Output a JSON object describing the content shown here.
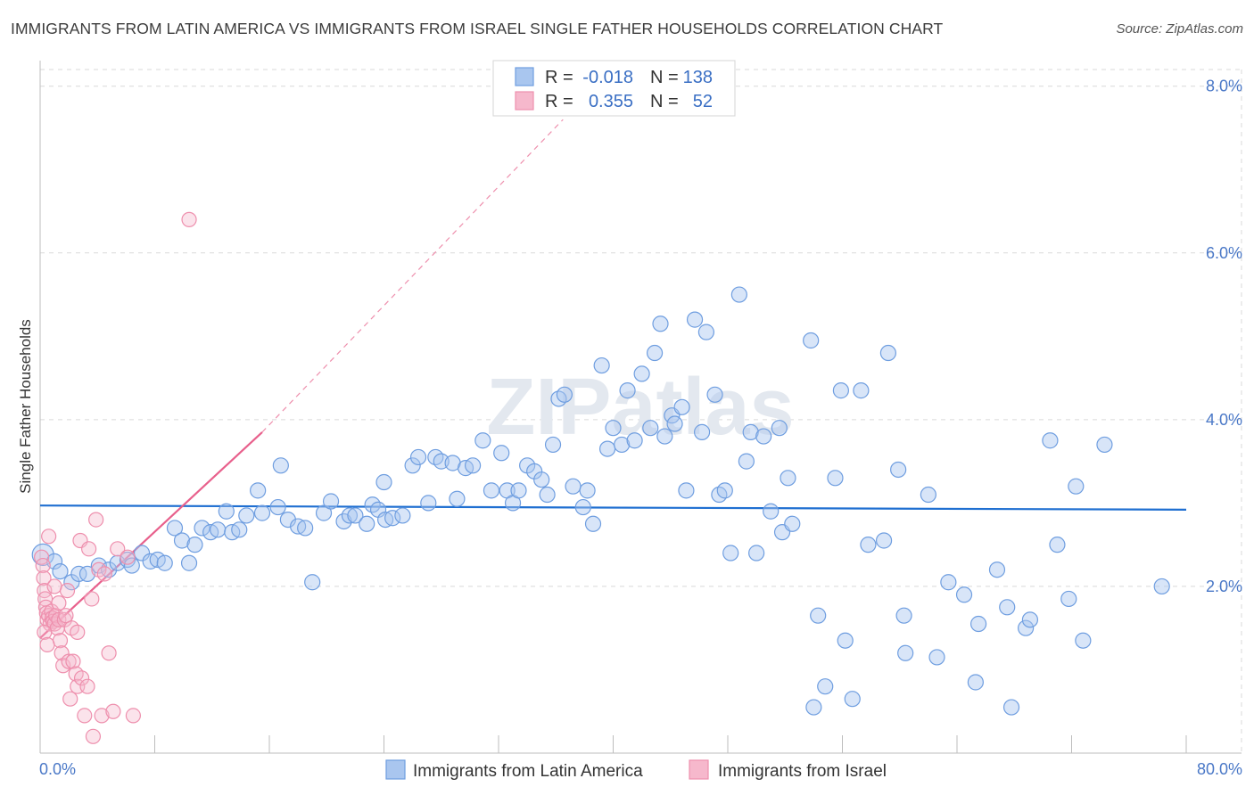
{
  "title": "IMMIGRANTS FROM LATIN AMERICA VS IMMIGRANTS FROM ISRAEL SINGLE FATHER HOUSEHOLDS CORRELATION CHART",
  "source": "Source: ZipAtlas.com",
  "watermark": "ZIPatlas",
  "colors": {
    "blue_fill": "#a9c6ef",
    "blue_stroke": "#6f9ee0",
    "blue_line": "#1f6fd1",
    "pink_fill": "#f6b8cc",
    "pink_stroke": "#ee8fad",
    "pink_line": "#e8608c",
    "grid": "#d9d9d9",
    "tick_label": "#4a78c7"
  },
  "legend": {
    "rows": [
      {
        "r_label": "R =",
        "r_value": "-0.018",
        "n_label": "N =",
        "n_value": "138",
        "color": "#a9c6ef"
      },
      {
        "r_label": "R =",
        "r_value": "0.355",
        "n_label": "N =",
        "n_value": "52",
        "color": "#f6b8cc"
      }
    ]
  },
  "chart_data": {
    "type": "scatter",
    "title": "IMMIGRANTS FROM LATIN AMERICA VS IMMIGRANTS FROM ISRAEL SINGLE FATHER HOUSEHOLDS CORRELATION CHART",
    "xlabel": "",
    "ylabel": "Single Father Households",
    "xlim": [
      0,
      80
    ],
    "ylim": [
      0,
      8.2
    ],
    "x_tick_labels": [
      "0.0%",
      "80.0%"
    ],
    "y_tick_labels": [
      "2.0%",
      "4.0%",
      "6.0%",
      "8.0%"
    ],
    "y_ticks": [
      2,
      4,
      6,
      8
    ],
    "grid": true,
    "legend_position": "top-center",
    "series": [
      {
        "name": "Immigrants from Latin America",
        "color": "#a9c6ef",
        "trend": {
          "x": [
            0,
            80
          ],
          "y": [
            2.97,
            2.92
          ]
        },
        "points": [
          [
            0.2,
            2.38
          ],
          [
            1.0,
            2.3
          ],
          [
            1.4,
            2.18
          ],
          [
            2.2,
            2.05
          ],
          [
            2.7,
            2.15
          ],
          [
            3.3,
            2.15
          ],
          [
            4.1,
            2.25
          ],
          [
            4.8,
            2.2
          ],
          [
            5.4,
            2.28
          ],
          [
            6.1,
            2.32
          ],
          [
            6.4,
            2.25
          ],
          [
            7.1,
            2.4
          ],
          [
            7.7,
            2.3
          ],
          [
            8.2,
            2.32
          ],
          [
            8.7,
            2.28
          ],
          [
            9.4,
            2.7
          ],
          [
            9.9,
            2.55
          ],
          [
            10.4,
            2.28
          ],
          [
            10.8,
            2.5
          ],
          [
            11.3,
            2.7
          ],
          [
            11.9,
            2.65
          ],
          [
            12.4,
            2.68
          ],
          [
            13.0,
            2.9
          ],
          [
            13.4,
            2.65
          ],
          [
            13.9,
            2.68
          ],
          [
            14.4,
            2.85
          ],
          [
            15.2,
            3.15
          ],
          [
            15.5,
            2.88
          ],
          [
            16.6,
            2.95
          ],
          [
            16.8,
            3.45
          ],
          [
            17.3,
            2.8
          ],
          [
            18.0,
            2.72
          ],
          [
            18.5,
            2.7
          ],
          [
            19.0,
            2.05
          ],
          [
            19.8,
            2.88
          ],
          [
            20.3,
            3.02
          ],
          [
            21.2,
            2.78
          ],
          [
            21.6,
            2.85
          ],
          [
            22.0,
            2.85
          ],
          [
            22.8,
            2.75
          ],
          [
            23.2,
            2.98
          ],
          [
            23.6,
            2.92
          ],
          [
            24.1,
            2.8
          ],
          [
            24.0,
            3.25
          ],
          [
            24.6,
            2.82
          ],
          [
            25.3,
            2.85
          ],
          [
            26.0,
            3.45
          ],
          [
            26.4,
            3.55
          ],
          [
            27.1,
            3.0
          ],
          [
            27.6,
            3.55
          ],
          [
            28.0,
            3.5
          ],
          [
            28.8,
            3.48
          ],
          [
            29.1,
            3.05
          ],
          [
            29.7,
            3.42
          ],
          [
            30.2,
            3.45
          ],
          [
            30.9,
            3.75
          ],
          [
            31.5,
            3.15
          ],
          [
            32.2,
            3.6
          ],
          [
            32.6,
            3.15
          ],
          [
            33.0,
            3.0
          ],
          [
            33.4,
            3.15
          ],
          [
            34.0,
            3.45
          ],
          [
            34.5,
            3.38
          ],
          [
            35.0,
            3.28
          ],
          [
            35.4,
            3.1
          ],
          [
            35.8,
            3.7
          ],
          [
            36.2,
            4.25
          ],
          [
            36.6,
            4.3
          ],
          [
            37.2,
            3.2
          ],
          [
            37.9,
            2.95
          ],
          [
            38.2,
            3.15
          ],
          [
            38.6,
            2.75
          ],
          [
            39.2,
            4.65
          ],
          [
            39.6,
            3.65
          ],
          [
            40.0,
            3.9
          ],
          [
            40.6,
            3.7
          ],
          [
            41.0,
            4.35
          ],
          [
            41.5,
            3.75
          ],
          [
            42.0,
            4.55
          ],
          [
            42.6,
            3.9
          ],
          [
            42.9,
            4.8
          ],
          [
            43.3,
            5.15
          ],
          [
            43.6,
            3.8
          ],
          [
            44.1,
            4.05
          ],
          [
            44.3,
            3.95
          ],
          [
            44.8,
            4.15
          ],
          [
            45.1,
            3.15
          ],
          [
            45.7,
            5.2
          ],
          [
            46.2,
            3.85
          ],
          [
            46.5,
            5.05
          ],
          [
            47.1,
            4.3
          ],
          [
            47.4,
            3.1
          ],
          [
            47.8,
            3.15
          ],
          [
            48.2,
            2.4
          ],
          [
            48.8,
            5.5
          ],
          [
            49.3,
            3.5
          ],
          [
            49.6,
            3.85
          ],
          [
            50.0,
            2.4
          ],
          [
            50.5,
            3.8
          ],
          [
            51.0,
            2.9
          ],
          [
            51.6,
            3.9
          ],
          [
            51.8,
            2.65
          ],
          [
            52.2,
            3.3
          ],
          [
            52.5,
            2.75
          ],
          [
            53.8,
            4.95
          ],
          [
            54.3,
            1.65
          ],
          [
            54.0,
            0.55
          ],
          [
            54.8,
            0.8
          ],
          [
            55.5,
            3.3
          ],
          [
            55.9,
            4.35
          ],
          [
            56.2,
            1.35
          ],
          [
            56.7,
            0.65
          ],
          [
            57.3,
            4.35
          ],
          [
            57.8,
            2.5
          ],
          [
            58.9,
            2.55
          ],
          [
            59.2,
            4.8
          ],
          [
            59.9,
            3.4
          ],
          [
            60.3,
            1.65
          ],
          [
            60.4,
            1.2
          ],
          [
            62.0,
            3.1
          ],
          [
            62.6,
            1.15
          ],
          [
            63.4,
            2.05
          ],
          [
            64.5,
            1.9
          ],
          [
            65.3,
            0.85
          ],
          [
            65.5,
            1.55
          ],
          [
            66.8,
            2.2
          ],
          [
            67.5,
            1.75
          ],
          [
            67.8,
            0.55
          ],
          [
            68.8,
            1.5
          ],
          [
            69.1,
            1.6
          ],
          [
            70.5,
            3.75
          ],
          [
            71.0,
            2.5
          ],
          [
            71.8,
            1.85
          ],
          [
            72.3,
            3.2
          ],
          [
            72.8,
            1.35
          ],
          [
            74.3,
            3.7
          ],
          [
            78.3,
            2.0
          ]
        ]
      },
      {
        "name": "Immigrants from Israel",
        "color": "#f6b8cc",
        "trend": {
          "x": [
            0,
            15.5
          ],
          "y": [
            1.38,
            3.85
          ]
        },
        "trend_dashed": {
          "x": [
            15.5,
            36.5
          ],
          "y": [
            3.85,
            7.6
          ]
        },
        "points": [
          [
            0.1,
            2.35
          ],
          [
            0.2,
            2.25
          ],
          [
            0.25,
            2.1
          ],
          [
            0.3,
            1.95
          ],
          [
            0.35,
            1.85
          ],
          [
            0.4,
            1.75
          ],
          [
            0.45,
            1.68
          ],
          [
            0.5,
            1.6
          ],
          [
            0.6,
            1.65
          ],
          [
            0.7,
            1.55
          ],
          [
            0.8,
            1.7
          ],
          [
            0.85,
            1.62
          ],
          [
            0.9,
            1.58
          ],
          [
            1.0,
            1.55
          ],
          [
            1.1,
            1.65
          ],
          [
            1.2,
            1.5
          ],
          [
            1.3,
            1.6
          ],
          [
            1.4,
            1.35
          ],
          [
            1.5,
            1.2
          ],
          [
            1.6,
            1.05
          ],
          [
            1.7,
            1.6
          ],
          [
            1.8,
            1.65
          ],
          [
            1.9,
            1.95
          ],
          [
            2.0,
            1.1
          ],
          [
            2.1,
            0.65
          ],
          [
            2.2,
            1.5
          ],
          [
            2.3,
            1.1
          ],
          [
            2.5,
            0.95
          ],
          [
            2.6,
            0.8
          ],
          [
            2.8,
            2.55
          ],
          [
            2.9,
            0.9
          ],
          [
            3.1,
            0.45
          ],
          [
            3.3,
            0.8
          ],
          [
            3.4,
            2.45
          ],
          [
            3.6,
            1.85
          ],
          [
            3.7,
            0.2
          ],
          [
            3.9,
            2.8
          ],
          [
            4.1,
            2.2
          ],
          [
            4.3,
            0.45
          ],
          [
            4.5,
            2.15
          ],
          [
            4.8,
            1.2
          ],
          [
            5.1,
            0.5
          ],
          [
            5.4,
            2.45
          ],
          [
            6.1,
            2.35
          ],
          [
            6.5,
            0.45
          ],
          [
            10.4,
            6.4
          ],
          [
            0.3,
            1.45
          ],
          [
            0.6,
            2.6
          ],
          [
            1.0,
            2.0
          ],
          [
            1.3,
            1.8
          ],
          [
            2.6,
            1.45
          ],
          [
            0.5,
            1.3
          ]
        ]
      }
    ]
  },
  "bottom_legend": [
    {
      "label": "Immigrants from Latin America",
      "color": "#a9c6ef"
    },
    {
      "label": "Immigrants from Israel",
      "color": "#f6b8cc"
    }
  ]
}
